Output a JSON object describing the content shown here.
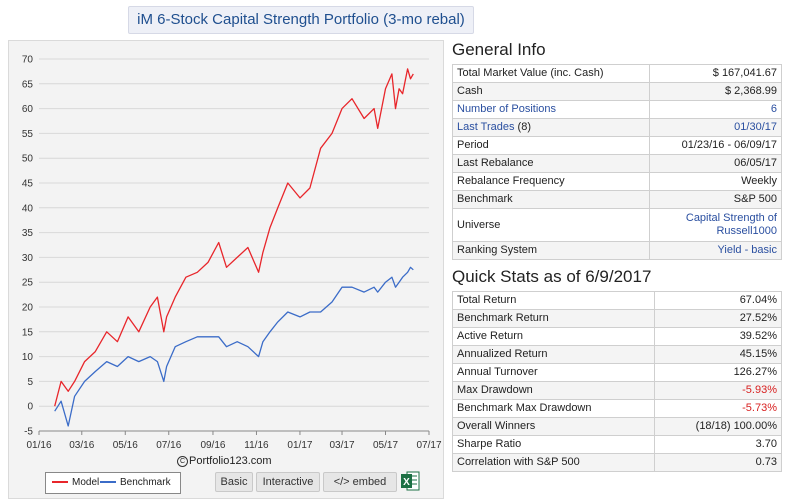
{
  "title": "iM 6-Stock Capital Strength Portfolio (3-mo rebal)",
  "colors": {
    "model": "#e8262b",
    "benchmark": "#3b6cc8",
    "link": "#2a4fa0",
    "negative": "#d82020"
  },
  "copyright": "Portfolio123.com",
  "buttons": {
    "basic": "Basic",
    "interactive": "Interactive",
    "embed": "</> embed"
  },
  "excel_icon": "excel-icon",
  "general_info": {
    "heading": "General Info",
    "rows": [
      {
        "label": "Total Market Value (inc. Cash)",
        "value": "$ 167,041.67"
      },
      {
        "label": "Cash",
        "value": "$ 2,368.99"
      },
      {
        "label": "Number of Positions",
        "value": "6"
      },
      {
        "label": "Last Trades",
        "label_suffix": " (8)",
        "value": "01/30/17"
      },
      {
        "label": "Period",
        "value": "01/23/16 - 06/09/17"
      },
      {
        "label": "Last Rebalance",
        "value": "06/05/17"
      },
      {
        "label": "Rebalance Frequency",
        "value": "Weekly"
      },
      {
        "label": "Benchmark",
        "value": "S&P 500"
      },
      {
        "label": "Universe",
        "value_line1": "Capital Strength of",
        "value_line2": "Russell1000"
      },
      {
        "label": "Ranking System",
        "value": "Yield - basic"
      }
    ]
  },
  "quick_stats": {
    "heading": "Quick Stats as of 6/9/2017",
    "rows": [
      {
        "label": "Total Return",
        "value": "67.04%"
      },
      {
        "label": "Benchmark Return",
        "value": "27.52%"
      },
      {
        "label": "Active Return",
        "value": "39.52%"
      },
      {
        "label": "Annualized Return",
        "value": "45.15%"
      },
      {
        "label": "Annual Turnover",
        "value": "126.27%"
      },
      {
        "label": "Max Drawdown",
        "value": "-5.93%"
      },
      {
        "label": "Benchmark Max Drawdown",
        "value": "-5.73%"
      },
      {
        "label": "Overall Winners",
        "value": "(18/18) 100.00%"
      },
      {
        "label": "Sharpe Ratio",
        "value": "3.70"
      },
      {
        "label": "Correlation with S&P 500",
        "value": "0.73"
      }
    ]
  },
  "chart_data": {
    "type": "line",
    "ylim": [
      -5,
      70
    ],
    "y_ticks": [
      "-5",
      "0",
      "5",
      "10",
      "15",
      "20",
      "25",
      "30",
      "35",
      "40",
      "45",
      "50",
      "55",
      "60",
      "65",
      "70"
    ],
    "x_tick_labels": [
      "01/16",
      "03/16",
      "05/16",
      "07/16",
      "09/16",
      "11/16",
      "01/17",
      "03/17",
      "05/17",
      "07/17"
    ],
    "x_tick_dates": [
      "2016-01-01",
      "2016-03-01",
      "2016-05-01",
      "2016-07-01",
      "2016-09-01",
      "2016-11-01",
      "2017-01-01",
      "2017-03-01",
      "2017-05-01",
      "2017-07-01"
    ],
    "xlim": [
      "2016-01-01",
      "2017-07-01"
    ],
    "legend": [
      "Model",
      "Benchmark"
    ],
    "series": [
      {
        "name": "Model",
        "x": [
          "2016-01-23",
          "2016-02-01",
          "2016-02-11",
          "2016-02-20",
          "2016-03-05",
          "2016-03-20",
          "2016-04-05",
          "2016-04-20",
          "2016-05-05",
          "2016-05-20",
          "2016-06-05",
          "2016-06-15",
          "2016-06-24",
          "2016-06-28",
          "2016-07-10",
          "2016-07-25",
          "2016-08-10",
          "2016-08-25",
          "2016-09-09",
          "2016-09-20",
          "2016-10-05",
          "2016-10-20",
          "2016-11-04",
          "2016-11-10",
          "2016-11-20",
          "2016-12-01",
          "2016-12-15",
          "2017-01-01",
          "2017-01-15",
          "2017-01-30",
          "2017-02-15",
          "2017-03-01",
          "2017-03-15",
          "2017-04-01",
          "2017-04-15",
          "2017-04-20",
          "2017-05-01",
          "2017-05-10",
          "2017-05-15",
          "2017-05-20",
          "2017-05-25",
          "2017-06-01",
          "2017-06-05",
          "2017-06-09"
        ],
        "values": [
          0,
          5,
          3,
          5,
          9,
          11,
          15,
          13,
          18,
          15,
          20,
          22,
          15,
          18,
          22,
          26,
          27,
          29,
          33,
          28,
          30,
          32,
          27,
          31,
          36,
          40,
          45,
          42,
          44,
          52,
          55,
          60,
          62,
          58,
          60,
          56,
          64,
          67,
          60,
          64,
          63,
          68,
          66,
          67
        ]
      },
      {
        "name": "Benchmark",
        "x": [
          "2016-01-23",
          "2016-02-01",
          "2016-02-11",
          "2016-02-20",
          "2016-03-05",
          "2016-03-20",
          "2016-04-05",
          "2016-04-20",
          "2016-05-05",
          "2016-05-20",
          "2016-06-05",
          "2016-06-15",
          "2016-06-24",
          "2016-06-28",
          "2016-07-10",
          "2016-07-25",
          "2016-08-10",
          "2016-08-25",
          "2016-09-09",
          "2016-09-20",
          "2016-10-05",
          "2016-10-20",
          "2016-11-04",
          "2016-11-10",
          "2016-11-20",
          "2016-12-01",
          "2016-12-15",
          "2017-01-01",
          "2017-01-15",
          "2017-01-30",
          "2017-02-15",
          "2017-03-01",
          "2017-03-15",
          "2017-04-01",
          "2017-04-15",
          "2017-04-20",
          "2017-05-01",
          "2017-05-10",
          "2017-05-15",
          "2017-05-20",
          "2017-05-25",
          "2017-06-01",
          "2017-06-05",
          "2017-06-09"
        ],
        "values": [
          -1,
          1,
          -4,
          2,
          5,
          7,
          9,
          8,
          10,
          9,
          10,
          9,
          5,
          8,
          12,
          13,
          14,
          14,
          14,
          12,
          13,
          12,
          10,
          13,
          15,
          17,
          19,
          18,
          19,
          19,
          21,
          24,
          24,
          23,
          24,
          23,
          25,
          26,
          24,
          25,
          26,
          27,
          28,
          27.5
        ]
      }
    ]
  }
}
